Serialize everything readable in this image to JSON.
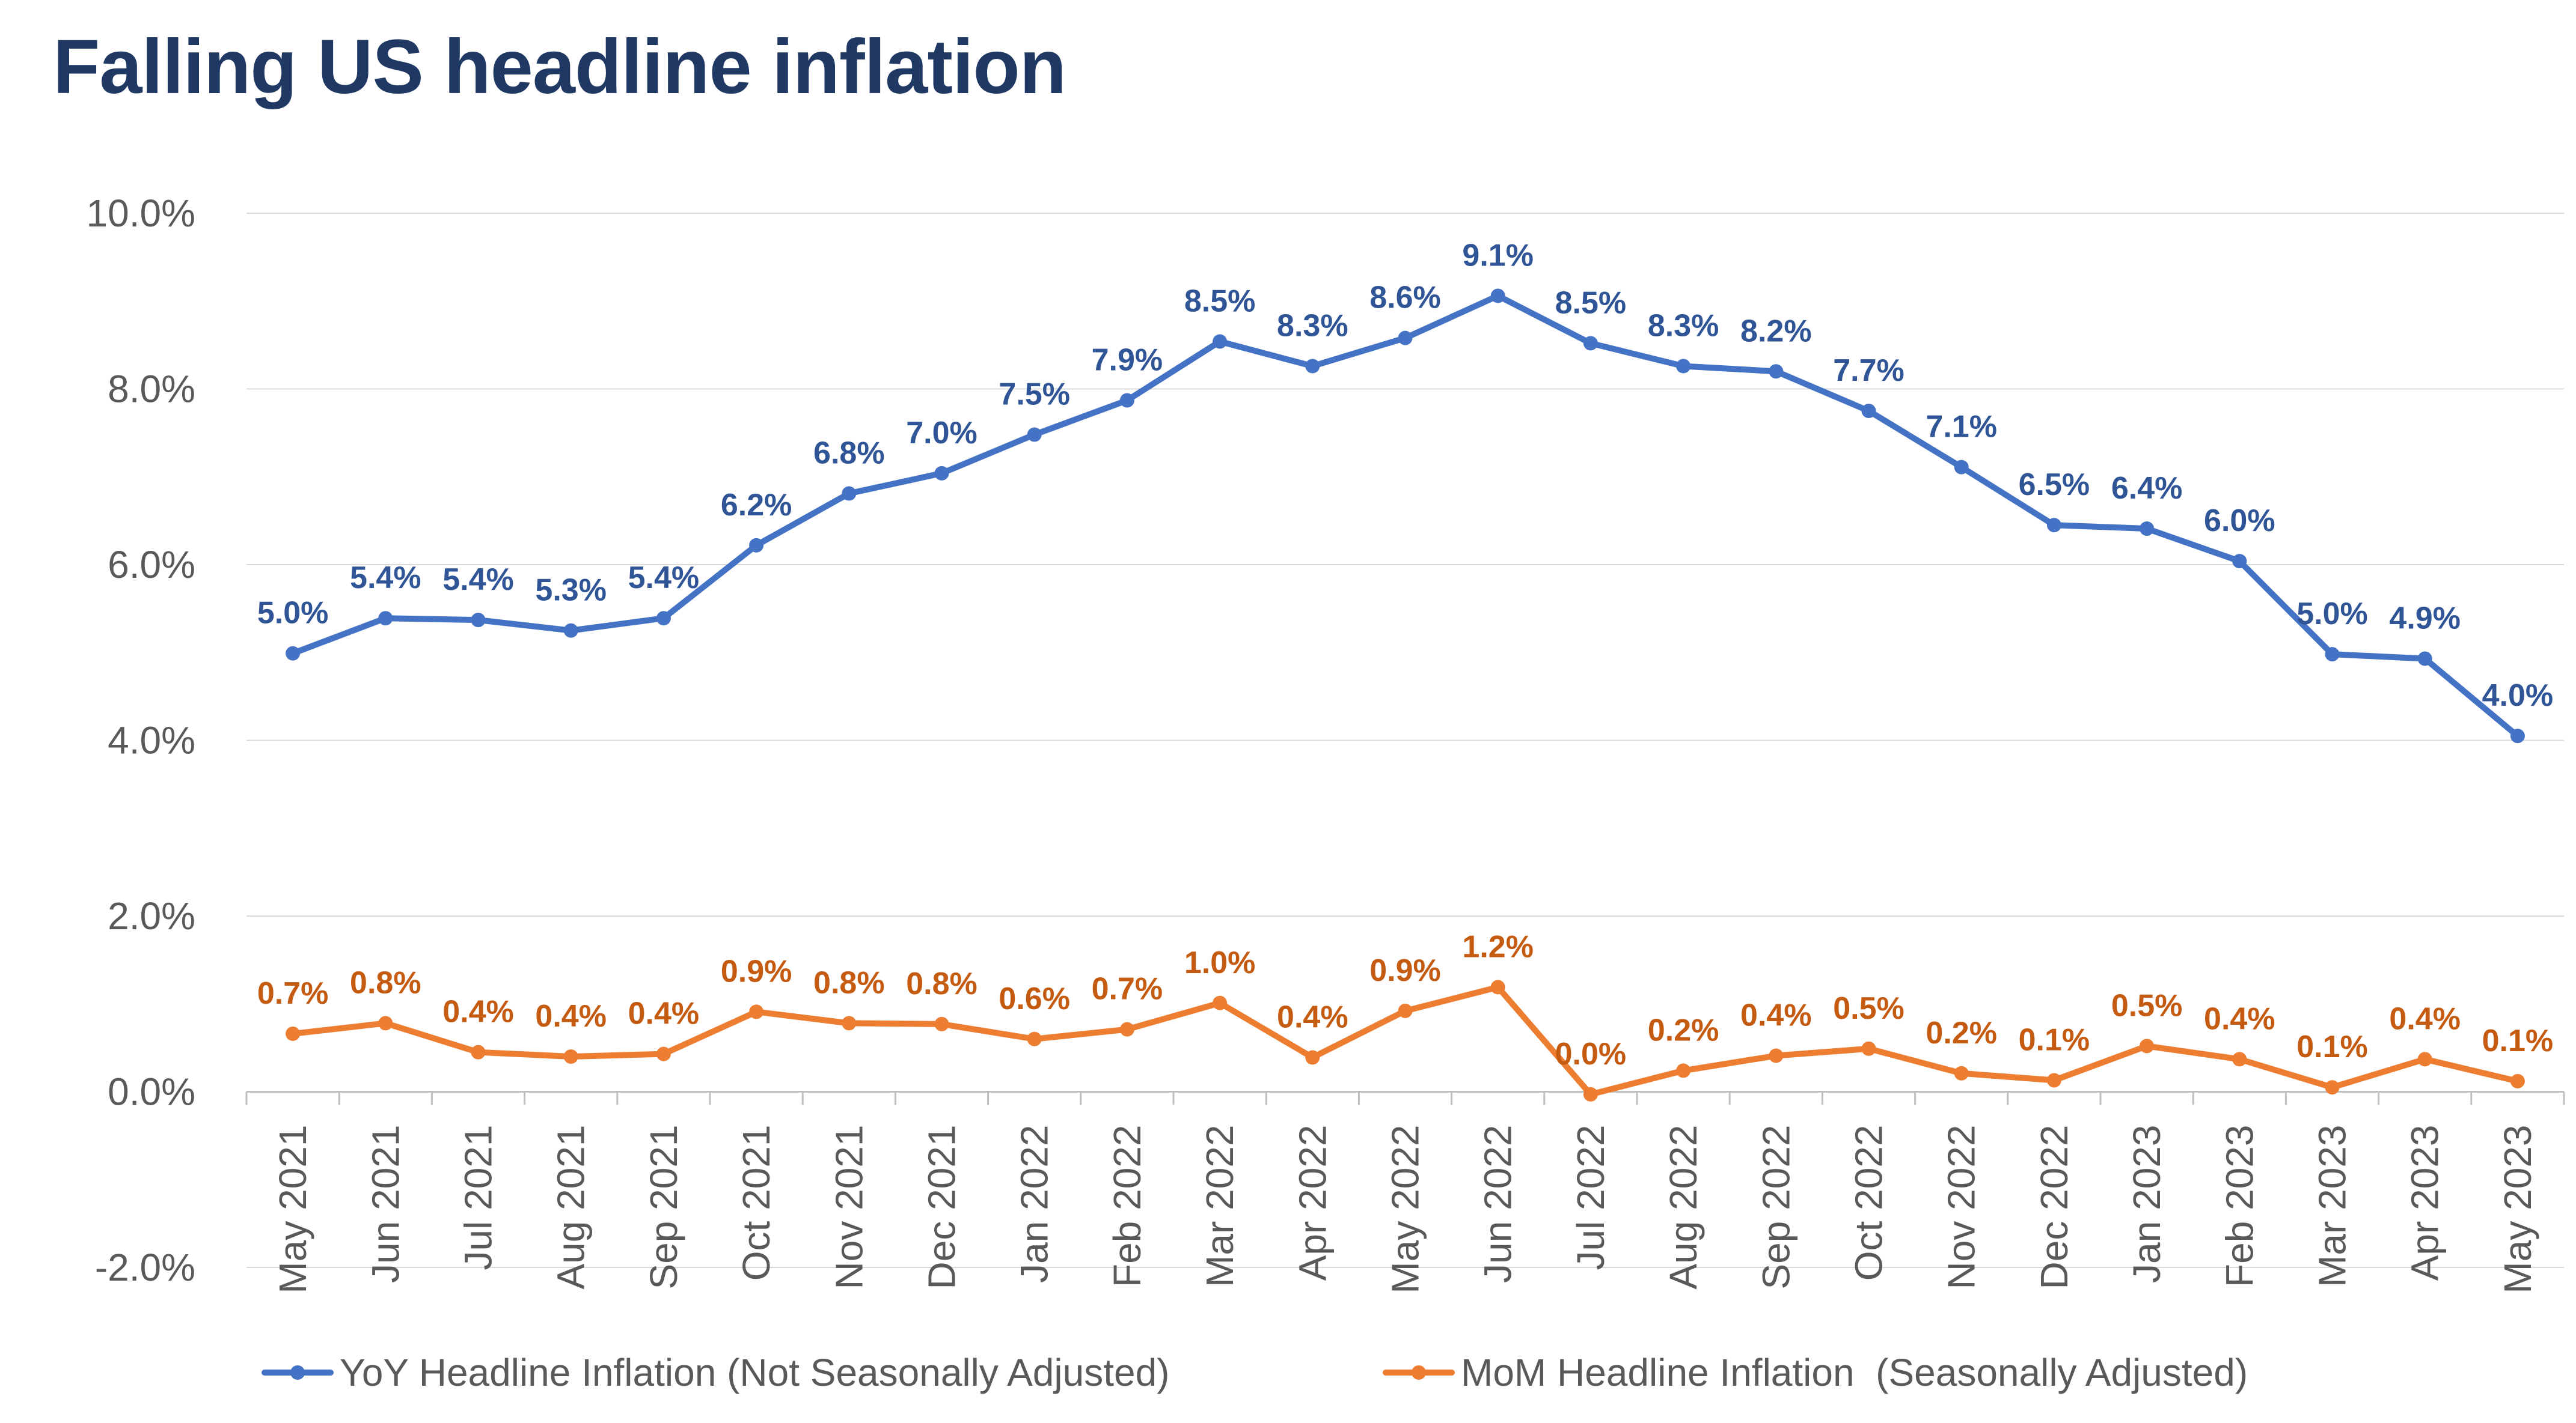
{
  "chart_data": {
    "type": "line",
    "title": "Falling US headline inflation",
    "categories": [
      "May 2021",
      "Jun 2021",
      "Jul 2021",
      "Aug 2021",
      "Sep 2021",
      "Oct 2021",
      "Nov 2021",
      "Dec 2021",
      "Jan 2022",
      "Feb 2022",
      "Mar 2022",
      "Apr 2022",
      "May 2022",
      "Jun 2022",
      "Jul 2022",
      "Aug 2022",
      "Sep 2022",
      "Oct 2022",
      "Nov 2022",
      "Dec 2022",
      "Jan 2023",
      "Feb 2023",
      "Mar 2023",
      "Apr 2023",
      "May 2023"
    ],
    "series": [
      {
        "name": "YoY Headline Inflation (Not Seasonally Adjusted)",
        "color": "#4472c4",
        "label_color": "#2f5597",
        "values": [
          4.99,
          5.39,
          5.37,
          5.25,
          5.39,
          6.22,
          6.81,
          7.04,
          7.48,
          7.87,
          8.54,
          8.26,
          8.58,
          9.06,
          8.52,
          8.26,
          8.2,
          7.75,
          7.11,
          6.45,
          6.41,
          6.04,
          4.98,
          4.93,
          4.05
        ],
        "labels": [
          "5.0%",
          "5.4%",
          "5.4%",
          "5.3%",
          "5.4%",
          "6.2%",
          "6.8%",
          "7.0%",
          "7.5%",
          "7.9%",
          "8.5%",
          "8.3%",
          "8.6%",
          "9.1%",
          "8.5%",
          "8.3%",
          "8.2%",
          "7.7%",
          "7.1%",
          "6.5%",
          "6.4%",
          "6.0%",
          "5.0%",
          "4.9%",
          "4.0%"
        ]
      },
      {
        "name": "MoM Headline Inflation  (Seasonally Adjusted)",
        "color": "#ed7d31",
        "label_color": "#c55a11",
        "values": [
          0.66,
          0.78,
          0.45,
          0.4,
          0.43,
          0.91,
          0.78,
          0.77,
          0.6,
          0.71,
          1.01,
          0.39,
          0.92,
          1.19,
          -0.03,
          0.24,
          0.41,
          0.49,
          0.21,
          0.13,
          0.52,
          0.37,
          0.05,
          0.37,
          0.12
        ],
        "labels": [
          "0.7%",
          "0.8%",
          "0.4%",
          "0.4%",
          "0.4%",
          "0.9%",
          "0.8%",
          "0.8%",
          "0.6%",
          "0.7%",
          "1.0%",
          "0.4%",
          "0.9%",
          "1.2%",
          "0.0%",
          "0.2%",
          "0.4%",
          "0.5%",
          "0.2%",
          "0.1%",
          "0.5%",
          "0.4%",
          "0.1%",
          "0.4%",
          "0.1%"
        ]
      }
    ],
    "y_ticks": [
      "10.0%",
      "8.0%",
      "6.0%",
      "4.0%",
      "2.0%",
      "0.0%",
      "-2.0%"
    ],
    "ylim": [
      -2,
      10
    ],
    "xlabel": "",
    "ylabel": "",
    "grid": true,
    "legend": "bottom"
  }
}
